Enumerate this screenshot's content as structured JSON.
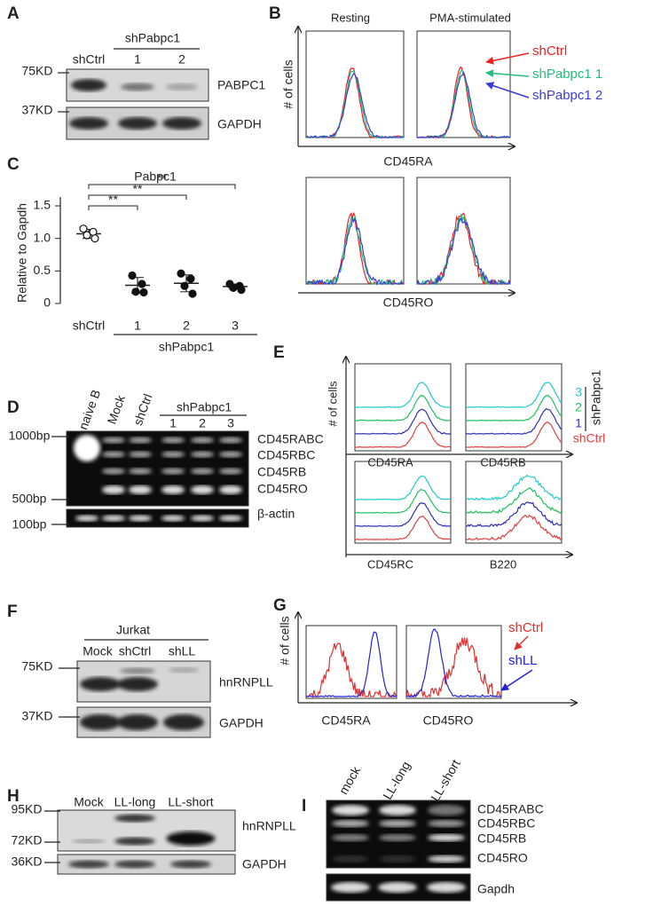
{
  "A": {
    "label": "A",
    "lanes": [
      "shCtrl",
      "1",
      "2"
    ],
    "lane_group": "shPabpc1",
    "markers": [
      "75KD",
      "37KD"
    ],
    "bands": [
      "PABPC1",
      "GAPDH"
    ]
  },
  "B": {
    "label": "B",
    "columns": [
      "Resting",
      "PMA-stimulated"
    ],
    "y_label": "# of cells",
    "x_labels": [
      "CD45RA",
      "CD45RO"
    ],
    "legend": [
      {
        "name": "shCtrl",
        "color": "#ee2222"
      },
      {
        "name": "shPabpc1 1",
        "color": "#22c07a"
      },
      {
        "name": "shPabpc1 2",
        "color": "#3b3bd6"
      }
    ]
  },
  "C": {
    "label": "C",
    "title": "Pabpc1",
    "y_label": "Relative to Gapdh",
    "categories": [
      "shCtrl",
      "1",
      "2",
      "3"
    ],
    "group_label": "shPabpc1",
    "ylim": [
      0,
      1.5
    ],
    "yticks": [
      0,
      0.5,
      {
        "value": 1,
        "label": "1.0"
      },
      1.5
    ],
    "points": [
      [
        1.15,
        1.1,
        1.05,
        1.0
      ],
      [
        0.43,
        0.3,
        0.18,
        0.17
      ],
      [
        0.46,
        0.38,
        0.27,
        0.15
      ],
      [
        0.3,
        0.27,
        0.24,
        0.21
      ]
    ],
    "means": [
      1.07,
      0.28,
      0.31,
      0.26
    ],
    "sd": [
      0.07,
      0.12,
      0.13,
      0.04
    ],
    "significance": [
      "**",
      "**",
      "**"
    ]
  },
  "D": {
    "label": "D",
    "lanes": [
      "naive B",
      "Mock",
      "shCtrl",
      "1",
      "2",
      "3"
    ],
    "lane_group": "shPabpc1",
    "markers": [
      "1000bp",
      "500bp",
      "100bp"
    ],
    "bands": [
      "CD45RABC",
      "CD45RBC",
      "CD45RB",
      "CD45RO",
      "β-actin"
    ]
  },
  "E": {
    "label": "E",
    "y_label": "# of cells",
    "x_labels": [
      "CD45RA",
      "CD45RB",
      "CD45RC",
      "B220"
    ],
    "legend": [
      {
        "name": "3",
        "color": "#22cccc"
      },
      {
        "name": "2",
        "color": "#22c060"
      },
      {
        "name": "1",
        "color": "#3030b0"
      },
      {
        "name": "shCtrl",
        "color": "#e04040"
      }
    ],
    "legend_group": "shPabpc1"
  },
  "F": {
    "label": "F",
    "cell_line": "Jurkat",
    "lanes": [
      "Mock",
      "shCtrl",
      "shLL"
    ],
    "markers": [
      "75KD",
      "37KD"
    ],
    "bands": [
      "hnRNPLL",
      "GAPDH"
    ]
  },
  "G": {
    "label": "G",
    "y_label": "# of cells",
    "x_labels": [
      "CD45RA",
      "CD45RO"
    ],
    "legend": [
      {
        "name": "shCtrl",
        "color": "#e03030"
      },
      {
        "name": "shLL",
        "color": "#2222dd"
      }
    ]
  },
  "H": {
    "label": "H",
    "lanes": [
      "Mock",
      "LL-long",
      "LL-short"
    ],
    "markers": [
      "95KD",
      "72KD",
      "36KD"
    ],
    "bands": [
      "hnRNPLL",
      "GAPDH"
    ]
  },
  "I": {
    "label": "I",
    "lanes": [
      "mock",
      "LL-long",
      "LL-short"
    ],
    "bands": [
      "CD45RABC",
      "CD45RBC",
      "CD45RB",
      "CD45RO",
      "Gapdh"
    ]
  }
}
